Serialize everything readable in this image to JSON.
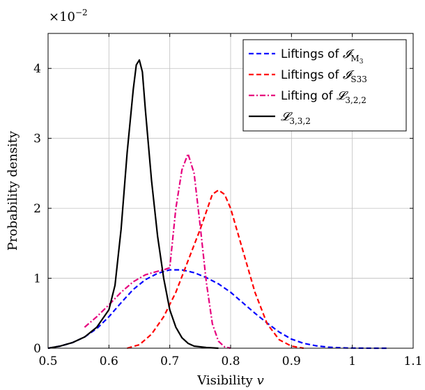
{
  "chart_data": {
    "type": "line",
    "xlabel": "Visibility",
    "xlabel_var": "v",
    "ylabel": "Probability density",
    "y_scale_prefix": "×10",
    "y_scale_exp": "−2",
    "xlim": [
      0.5,
      1.1
    ],
    "ylim": [
      0,
      4.5
    ],
    "x_ticks": [
      0.5,
      0.6,
      0.7,
      0.8,
      0.9,
      1,
      1.1
    ],
    "x_tick_labels": [
      "0.5",
      "0.6",
      "0.7",
      "0.8",
      "0.9",
      "1",
      "1.1"
    ],
    "y_ticks": [
      0,
      1,
      2,
      3,
      4
    ],
    "y_tick_labels": [
      "0",
      "1",
      "2",
      "3",
      "4"
    ],
    "grid": true,
    "legend_position": "top-right",
    "series": [
      {
        "label_text": "Liftings of ",
        "label_math": "𝓘",
        "label_sub": "M",
        "label_subsub": "3",
        "color": "#0000ff",
        "style": "dashed",
        "x": [
          0.5,
          0.52,
          0.54,
          0.56,
          0.58,
          0.6,
          0.62,
          0.64,
          0.66,
          0.68,
          0.7,
          0.72,
          0.74,
          0.76,
          0.78,
          0.8,
          0.82,
          0.84,
          0.86,
          0.88,
          0.9,
          0.92,
          0.94,
          0.96,
          0.98,
          1.0,
          1.02,
          1.04,
          1.06
        ],
        "y": [
          0.0,
          0.03,
          0.08,
          0.16,
          0.28,
          0.45,
          0.65,
          0.84,
          0.98,
          1.07,
          1.12,
          1.12,
          1.08,
          1.01,
          0.92,
          0.8,
          0.65,
          0.5,
          0.36,
          0.23,
          0.13,
          0.07,
          0.035,
          0.015,
          0.006,
          0.002,
          0.001,
          0.0,
          0.0
        ]
      },
      {
        "label_text": "Liftings of ",
        "label_math": "𝓘",
        "label_sub": "S33",
        "label_subsub": "",
        "color": "#ff0000",
        "style": "dashed",
        "x": [
          0.63,
          0.65,
          0.67,
          0.69,
          0.71,
          0.73,
          0.75,
          0.76,
          0.77,
          0.78,
          0.79,
          0.8,
          0.82,
          0.84,
          0.86,
          0.88,
          0.9,
          0.92
        ],
        "y": [
          0.0,
          0.05,
          0.2,
          0.45,
          0.8,
          1.25,
          1.7,
          1.95,
          2.2,
          2.26,
          2.2,
          2.0,
          1.4,
          0.8,
          0.35,
          0.12,
          0.03,
          0.0
        ]
      },
      {
        "label_text": "Lifting of ",
        "label_math": "𝓛",
        "label_sub": "3,2,2",
        "label_subsub": "",
        "color": "#e6007e",
        "style": "dashdot",
        "x": [
          0.56,
          0.58,
          0.6,
          0.62,
          0.64,
          0.66,
          0.68,
          0.69,
          0.7,
          0.71,
          0.72,
          0.73,
          0.74,
          0.75,
          0.76,
          0.77,
          0.78,
          0.79,
          0.8
        ],
        "y": [
          0.3,
          0.45,
          0.62,
          0.8,
          0.95,
          1.05,
          1.1,
          1.12,
          1.15,
          2.0,
          2.55,
          2.78,
          2.5,
          1.75,
          0.95,
          0.35,
          0.1,
          0.02,
          0.0
        ]
      },
      {
        "label_text": "",
        "label_math": "𝓛",
        "label_sub": "3,3,2",
        "label_subsub": "",
        "color": "#000000",
        "style": "solid",
        "x": [
          0.5,
          0.52,
          0.54,
          0.56,
          0.58,
          0.6,
          0.61,
          0.62,
          0.63,
          0.64,
          0.645,
          0.65,
          0.655,
          0.66,
          0.67,
          0.68,
          0.69,
          0.7,
          0.71,
          0.72,
          0.73,
          0.74,
          0.76,
          0.78
        ],
        "y": [
          0.0,
          0.03,
          0.08,
          0.16,
          0.3,
          0.55,
          0.9,
          1.7,
          2.8,
          3.7,
          4.05,
          4.12,
          3.95,
          3.4,
          2.4,
          1.6,
          1.0,
          0.55,
          0.3,
          0.15,
          0.07,
          0.03,
          0.01,
          0.0
        ]
      }
    ]
  }
}
